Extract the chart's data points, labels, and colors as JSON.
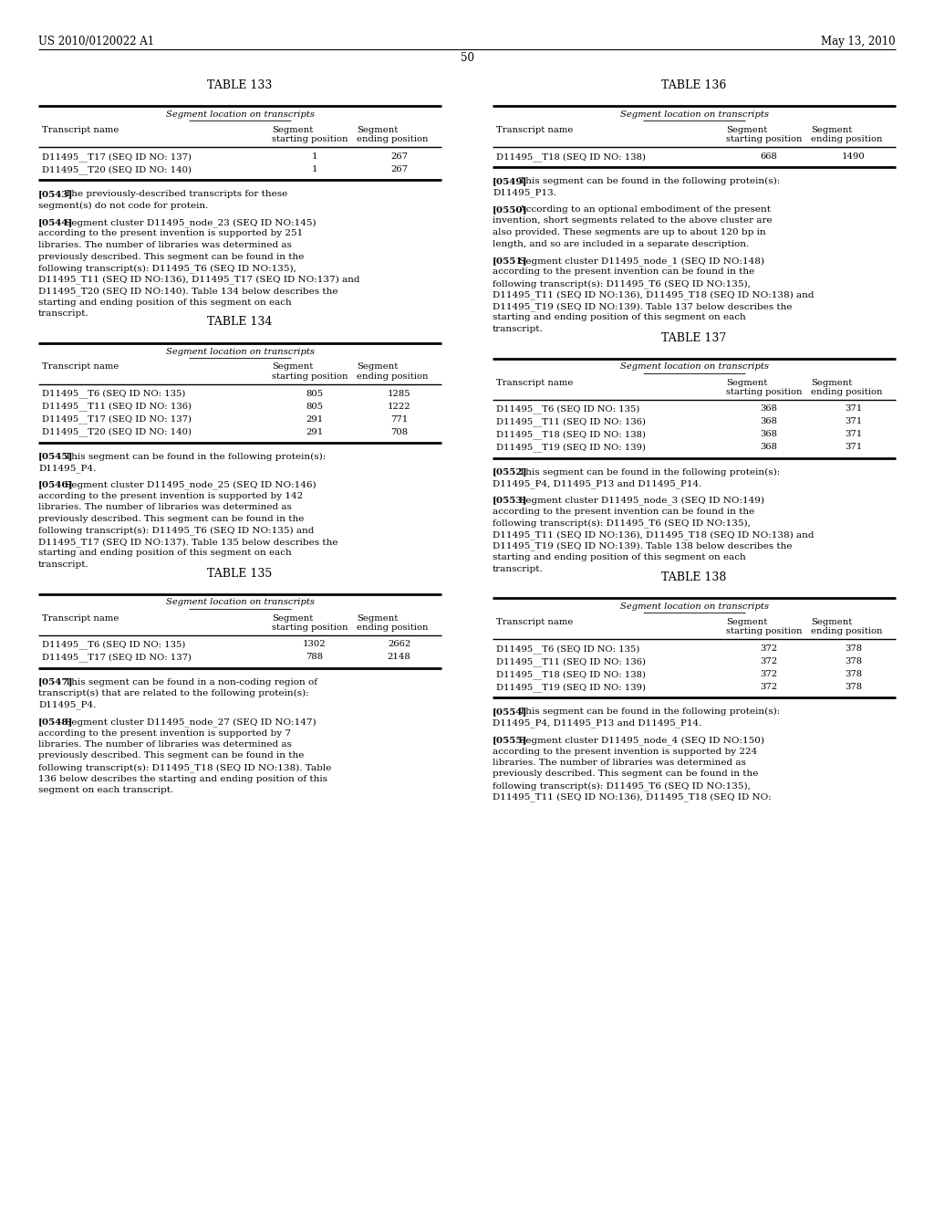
{
  "header_left": "US 2010/0120022 A1",
  "header_right": "May 13, 2010",
  "page_number": "50",
  "bg": "#ffffff",
  "fg": "#000000",
  "tables": [
    {
      "label": "TABLE 133",
      "subtitle": "Segment location on transcripts",
      "rows": [
        [
          "D11495__T17 (SEQ ID NO: 137)",
          "1",
          "267"
        ],
        [
          "D11495__T20 (SEQ ID NO: 140)",
          "1",
          "267"
        ]
      ],
      "side": "left"
    },
    {
      "label": "TABLE 134",
      "subtitle": "Segment location on transcripts",
      "rows": [
        [
          "D11495__T6 (SEQ ID NO: 135)",
          "805",
          "1285"
        ],
        [
          "D11495__T11 (SEQ ID NO: 136)",
          "805",
          "1222"
        ],
        [
          "D11495__T17 (SEQ ID NO: 137)",
          "291",
          "771"
        ],
        [
          "D11495__T20 (SEQ ID NO: 140)",
          "291",
          "708"
        ]
      ],
      "side": "left"
    },
    {
      "label": "TABLE 135",
      "subtitle": "Segment location on transcripts",
      "rows": [
        [
          "D11495__T6 (SEQ ID NO: 135)",
          "1302",
          "2662"
        ],
        [
          "D11495__T17 (SEQ ID NO: 137)",
          "788",
          "2148"
        ]
      ],
      "side": "left"
    },
    {
      "label": "TABLE 136",
      "subtitle": "Segment location on transcripts",
      "rows": [
        [
          "D11495__T18 (SEQ ID NO: 138)",
          "668",
          "1490"
        ]
      ],
      "side": "right"
    },
    {
      "label": "TABLE 137",
      "subtitle": "Segment location on transcripts",
      "rows": [
        [
          "D11495__T6 (SEQ ID NO: 135)",
          "368",
          "371"
        ],
        [
          "D11495__T11 (SEQ ID NO: 136)",
          "368",
          "371"
        ],
        [
          "D11495__T18 (SEQ ID NO: 138)",
          "368",
          "371"
        ],
        [
          "D11495__T19 (SEQ ID NO: 139)",
          "368",
          "371"
        ]
      ],
      "side": "right"
    },
    {
      "label": "TABLE 138",
      "subtitle": "Segment location on transcripts",
      "rows": [
        [
          "D11495__T6 (SEQ ID NO: 135)",
          "372",
          "378"
        ],
        [
          "D11495__T11 (SEQ ID NO: 136)",
          "372",
          "378"
        ],
        [
          "D11495__T18 (SEQ ID NO: 138)",
          "372",
          "378"
        ],
        [
          "D11495__T19 (SEQ ID NO: 139)",
          "372",
          "378"
        ]
      ],
      "side": "right"
    }
  ],
  "left_blocks": [
    {
      "tag": "[0543]",
      "bold": true,
      "body": "The previously-described transcripts for these segment(s) do not code for protein."
    },
    {
      "tag": "[0544]",
      "bold": true,
      "body": "Segment cluster D11495_node_23 (SEQ ID NO:145) according to the present invention is supported by 251 libraries. The number of libraries was determined as previously described. This segment can be found in the following transcript(s): D11495_T6 (SEQ ID NO:135), D11495_T11 (SEQ ID NO:136), D11495_T17 (SEQ ID NO:137) and D11495_T20 (SEQ ID NO:140). Table 134 below describes the starting and ending position of this segment on each transcript."
    },
    {
      "tag": "TABLE134",
      "bold": false,
      "body": ""
    },
    {
      "tag": "[0545]",
      "bold": true,
      "body": "This segment can be found in the following protein(s): D11495_P4."
    },
    {
      "tag": "[0546]",
      "bold": true,
      "body": "Segment cluster D11495_node_25 (SEQ ID NO:146) according to the present invention is supported by 142 libraries. The number of libraries was determined as previously described. This segment can be found in the following transcript(s): D11495_T6 (SEQ ID NO:135) and D11495_T17 (SEQ ID NO:137). Table 135 below describes the starting and ending position of this segment on each transcript."
    },
    {
      "tag": "TABLE135",
      "bold": false,
      "body": ""
    },
    {
      "tag": "[0547]",
      "bold": true,
      "body": "This segment can be found in a non-coding region of transcript(s) that are related to the following protein(s): D11495_P4."
    },
    {
      "tag": "[0548]",
      "bold": true,
      "body": "Segment cluster D11495_node_27 (SEQ ID NO:147) according to the present invention is supported by 7 libraries. The number of libraries was determined as previously described. This segment can be found in the following transcript(s): D11495_T18 (SEQ ID NO:138). Table 136 below describes the starting and ending position of this segment on each transcript."
    }
  ],
  "right_blocks": [
    {
      "tag": "[0549]",
      "bold": true,
      "body": "This segment can be found in the following protein(s): D11495_P13."
    },
    {
      "tag": "[0550]",
      "bold": true,
      "body": "According to an optional embodiment of the present invention, short segments related to the above cluster are also provided. These segments are up to about 120 bp in length, and so are included in a separate description."
    },
    {
      "tag": "[0551]",
      "bold": true,
      "body": "Segment cluster D11495_node_1 (SEQ ID NO:148) according to the present invention can be found in the following transcript(s): D11495_T6 (SEQ ID NO:135), D11495_T11 (SEQ ID NO:136), D11495_T18 (SEQ ID NO:138) and D11495_T19 (SEQ ID NO:139). Table 137 below describes the starting and ending position of this segment on each transcript."
    },
    {
      "tag": "TABLE137",
      "bold": false,
      "body": ""
    },
    {
      "tag": "[0552]",
      "bold": true,
      "body": "This segment can be found in the following protein(s): D11495_P4, D11495_P13 and D11495_P14."
    },
    {
      "tag": "[0553]",
      "bold": true,
      "body": "Segment cluster D11495_node_3 (SEQ ID NO:149) according to the present invention can be found in the following transcript(s): D11495_T6 (SEQ ID NO:135), D11495_T11 (SEQ ID NO:136), D11495_T18 (SEQ ID NO:138) and D11495_T19 (SEQ ID NO:139). Table 138 below describes the starting and ending position of this segment on each transcript."
    },
    {
      "tag": "TABLE138",
      "bold": false,
      "body": ""
    },
    {
      "tag": "[0554]",
      "bold": true,
      "body": "This segment can be found in the following protein(s): D11495_P4, D11495_P13 and D11495_P14."
    },
    {
      "tag": "[0555]",
      "bold": true,
      "body": "Segment cluster D11495_node_4 (SEQ ID NO:150) according to the present invention is supported by 224 libraries. The number of libraries was determined as previously described. This segment can be found in the following transcript(s): D11495_T6 (SEQ ID NO:135), D11495_T11 (SEQ ID NO:136), D11495_T18 (SEQ ID NO:"
    }
  ]
}
